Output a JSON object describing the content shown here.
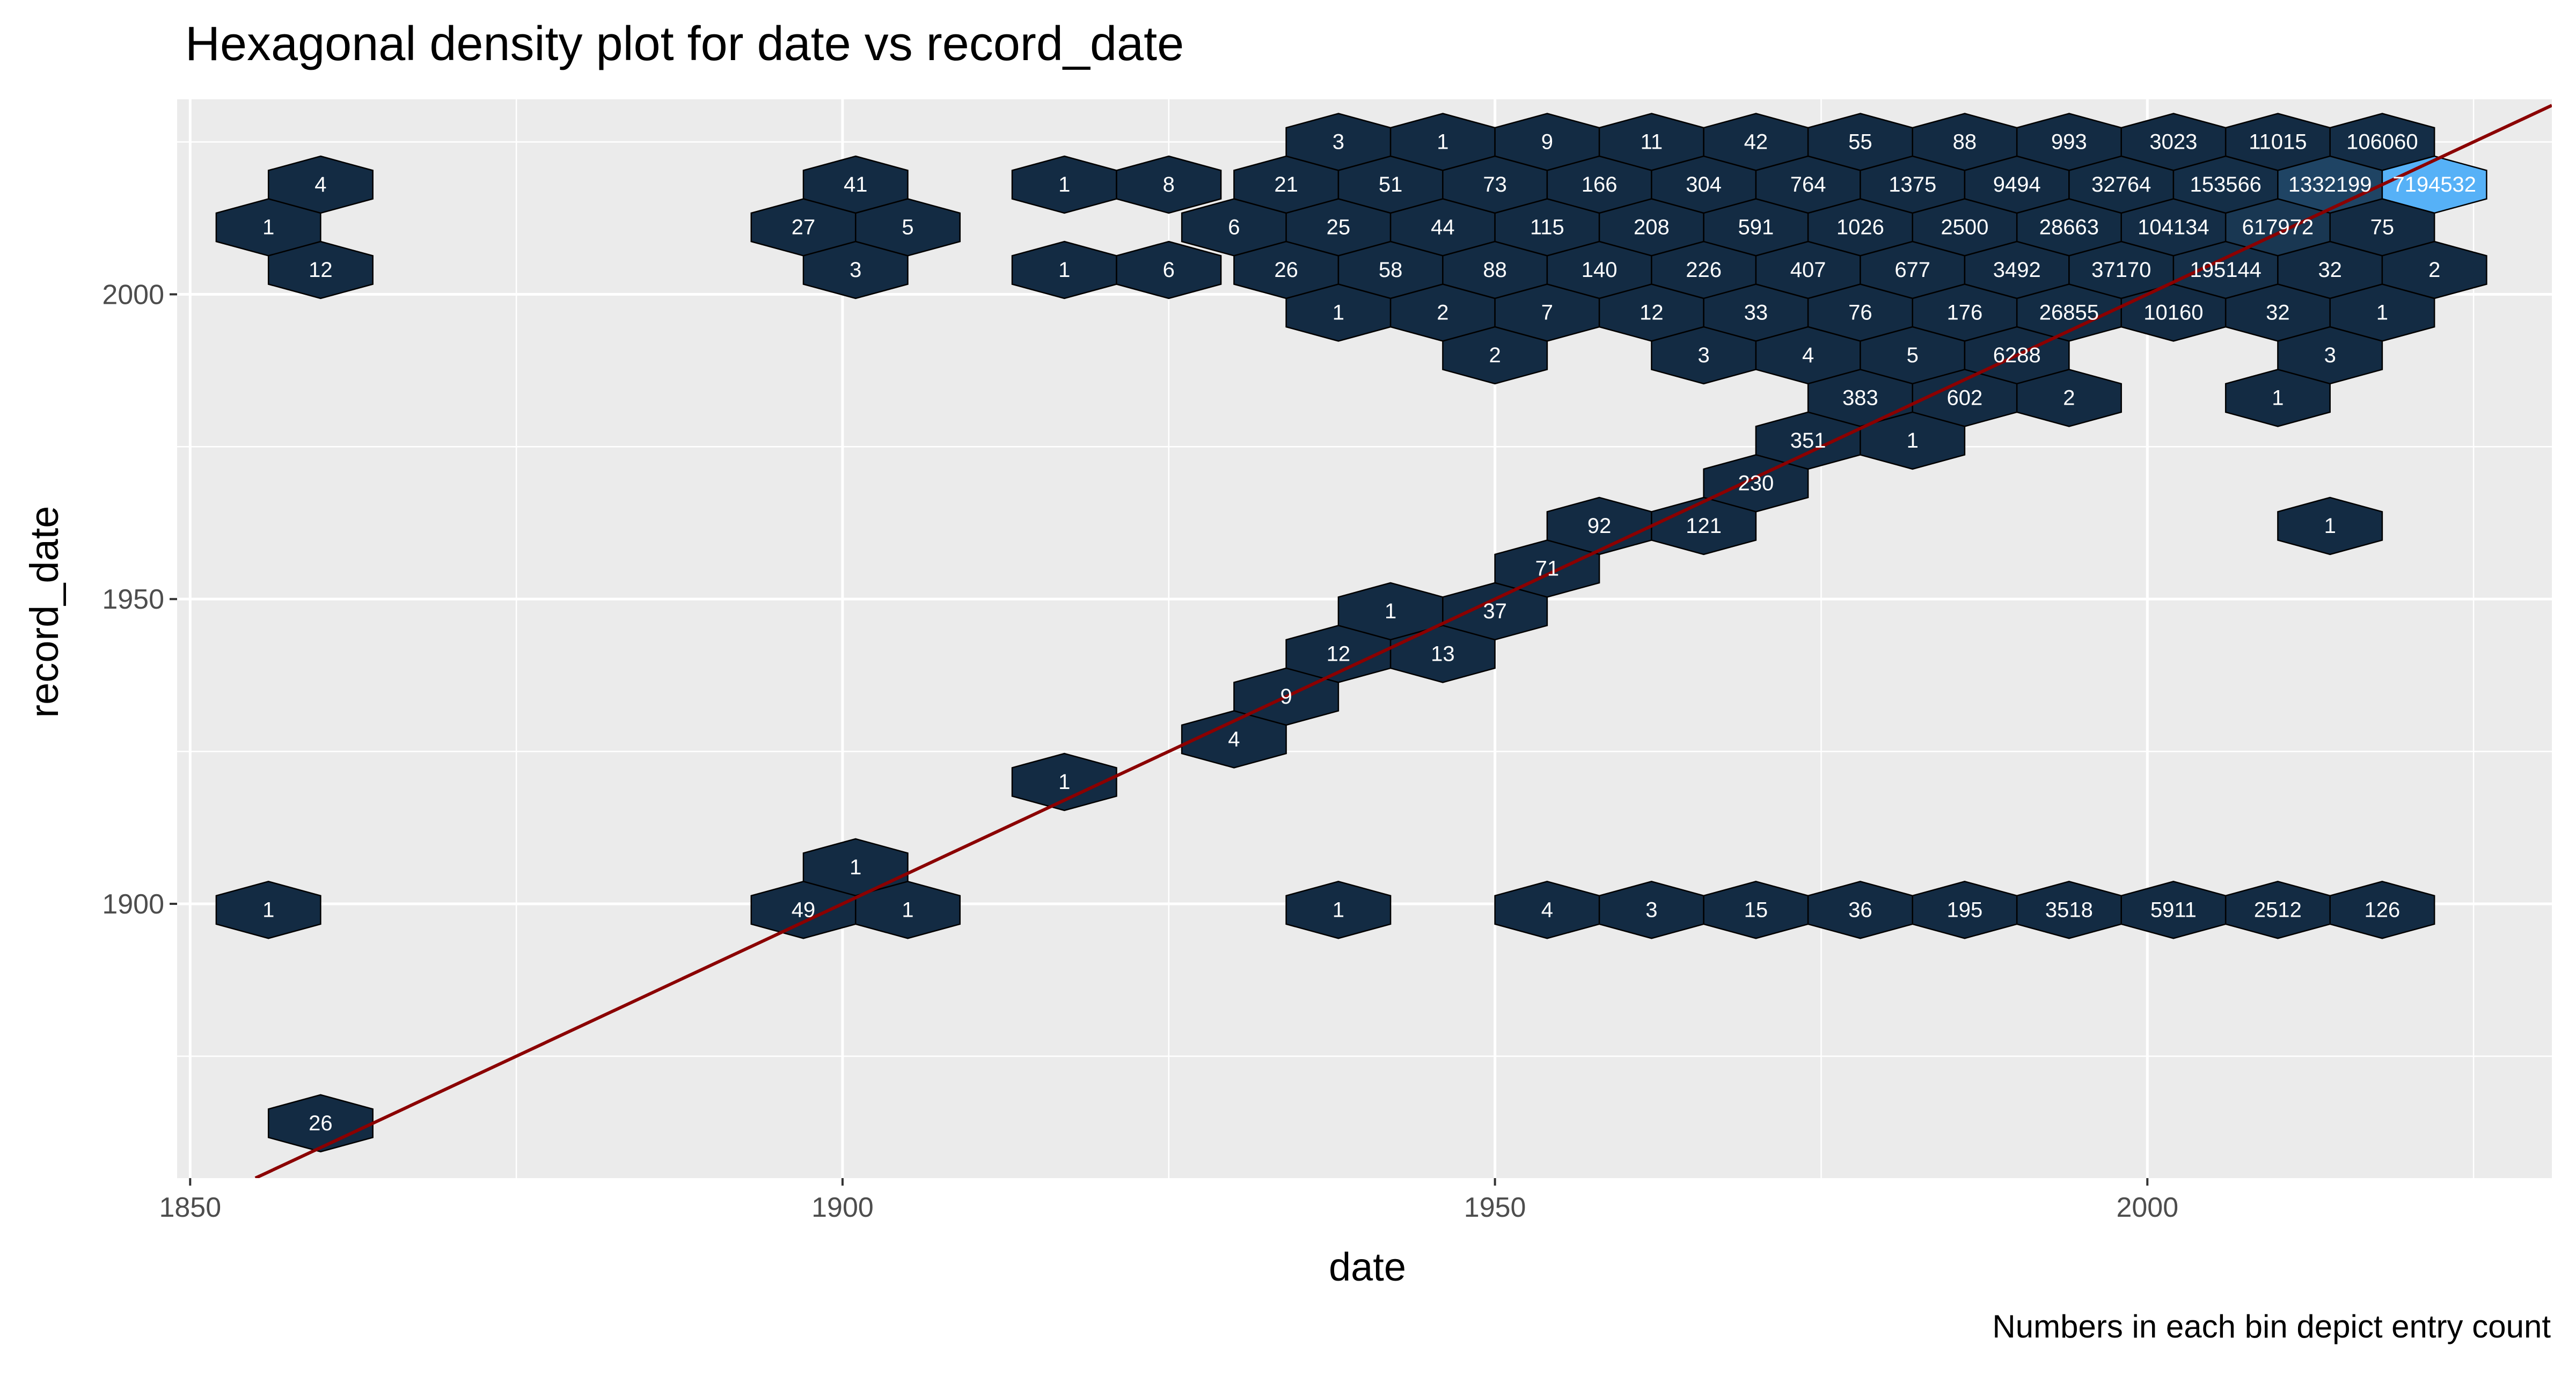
{
  "chart_data": {
    "type": "hexbin",
    "title": "Hexagonal density plot for date vs record_date",
    "xlabel": "date",
    "ylabel": "record_date",
    "caption": "Numbers in each bin depict entry count",
    "xlim": [
      1849,
      2031
    ],
    "ylim": [
      1855,
      2032
    ],
    "x_ticks": [
      1850,
      1900,
      1950,
      2000
    ],
    "y_ticks": [
      1900,
      1950,
      2000
    ],
    "grid": true,
    "colors": {
      "low": "#132b43",
      "high": "#56b1f7",
      "reference_line": "#8b0000"
    },
    "reference_line": {
      "slope": 1,
      "intercept": 0
    },
    "bins": [
      {
        "x": 1938,
        "y": 2025,
        "count": 3
      },
      {
        "x": 1946,
        "y": 2025,
        "count": 1
      },
      {
        "x": 1954,
        "y": 2025,
        "count": 9
      },
      {
        "x": 1962,
        "y": 2025,
        "count": 11
      },
      {
        "x": 1970,
        "y": 2025,
        "count": 42
      },
      {
        "x": 1978,
        "y": 2025,
        "count": 55
      },
      {
        "x": 1986,
        "y": 2025,
        "count": 88
      },
      {
        "x": 1994,
        "y": 2025,
        "count": 993
      },
      {
        "x": 2002,
        "y": 2025,
        "count": 3023
      },
      {
        "x": 2010,
        "y": 2025,
        "count": 11015
      },
      {
        "x": 2018,
        "y": 2025,
        "count": 106060
      },
      {
        "x": 1860,
        "y": 2018,
        "count": 4
      },
      {
        "x": 1901,
        "y": 2018,
        "count": 41
      },
      {
        "x": 1917,
        "y": 2018,
        "count": 1
      },
      {
        "x": 1925,
        "y": 2018,
        "count": 8
      },
      {
        "x": 1934,
        "y": 2018,
        "count": 21
      },
      {
        "x": 1942,
        "y": 2018,
        "count": 51
      },
      {
        "x": 1950,
        "y": 2018,
        "count": 73
      },
      {
        "x": 1958,
        "y": 2018,
        "count": 166
      },
      {
        "x": 1966,
        "y": 2018,
        "count": 304
      },
      {
        "x": 1974,
        "y": 2018,
        "count": 764
      },
      {
        "x": 1982,
        "y": 2018,
        "count": 1375
      },
      {
        "x": 1990,
        "y": 2018,
        "count": 9494
      },
      {
        "x": 1998,
        "y": 2018,
        "count": 32764
      },
      {
        "x": 2006,
        "y": 2018,
        "count": 153566
      },
      {
        "x": 2014,
        "y": 2018,
        "count": 1332199
      },
      {
        "x": 2022,
        "y": 2018,
        "count": 7194532
      },
      {
        "x": 1856,
        "y": 2011,
        "count": 1
      },
      {
        "x": 1897,
        "y": 2011,
        "count": 27
      },
      {
        "x": 1905,
        "y": 2011,
        "count": 5
      },
      {
        "x": 1930,
        "y": 2011,
        "count": 6
      },
      {
        "x": 1938,
        "y": 2011,
        "count": 25
      },
      {
        "x": 1946,
        "y": 2011,
        "count": 44
      },
      {
        "x": 1954,
        "y": 2011,
        "count": 115
      },
      {
        "x": 1962,
        "y": 2011,
        "count": 208
      },
      {
        "x": 1970,
        "y": 2011,
        "count": 591
      },
      {
        "x": 1978,
        "y": 2011,
        "count": 1026
      },
      {
        "x": 1986,
        "y": 2011,
        "count": 2500
      },
      {
        "x": 1994,
        "y": 2011,
        "count": 28663
      },
      {
        "x": 2002,
        "y": 2011,
        "count": 104134
      },
      {
        "x": 2010,
        "y": 2011,
        "count": 617972
      },
      {
        "x": 2018,
        "y": 2011,
        "count": 75
      },
      {
        "x": 1860,
        "y": 2004,
        "count": 12
      },
      {
        "x": 1901,
        "y": 2004,
        "count": 3
      },
      {
        "x": 1917,
        "y": 2004,
        "count": 1
      },
      {
        "x": 1925,
        "y": 2004,
        "count": 6
      },
      {
        "x": 1934,
        "y": 2004,
        "count": 26
      },
      {
        "x": 1942,
        "y": 2004,
        "count": 58
      },
      {
        "x": 1950,
        "y": 2004,
        "count": 88
      },
      {
        "x": 1958,
        "y": 2004,
        "count": 140
      },
      {
        "x": 1966,
        "y": 2004,
        "count": 226
      },
      {
        "x": 1974,
        "y": 2004,
        "count": 407
      },
      {
        "x": 1982,
        "y": 2004,
        "count": 677
      },
      {
        "x": 1990,
        "y": 2004,
        "count": 3492
      },
      {
        "x": 1998,
        "y": 2004,
        "count": 37170
      },
      {
        "x": 2006,
        "y": 2004,
        "count": 195144
      },
      {
        "x": 2014,
        "y": 2004,
        "count": 32
      },
      {
        "x": 2022,
        "y": 2004,
        "count": 2
      },
      {
        "x": 1938,
        "y": 1997,
        "count": 1
      },
      {
        "x": 1946,
        "y": 1997,
        "count": 2
      },
      {
        "x": 1954,
        "y": 1997,
        "count": 7
      },
      {
        "x": 1962,
        "y": 1997,
        "count": 12
      },
      {
        "x": 1970,
        "y": 1997,
        "count": 33
      },
      {
        "x": 1978,
        "y": 1997,
        "count": 76
      },
      {
        "x": 1986,
        "y": 1997,
        "count": 176
      },
      {
        "x": 1994,
        "y": 1997,
        "count": 26855
      },
      {
        "x": 2002,
        "y": 1997,
        "count": 10160
      },
      {
        "x": 2010,
        "y": 1997,
        "count": 32
      },
      {
        "x": 2018,
        "y": 1997,
        "count": 1
      },
      {
        "x": 1950,
        "y": 1990,
        "count": 2
      },
      {
        "x": 1966,
        "y": 1990,
        "count": 3
      },
      {
        "x": 1974,
        "y": 1990,
        "count": 4
      },
      {
        "x": 1982,
        "y": 1990,
        "count": 5
      },
      {
        "x": 1990,
        "y": 1990,
        "count": 6288
      },
      {
        "x": 2014,
        "y": 1990,
        "count": 3
      },
      {
        "x": 1978,
        "y": 1983,
        "count": 383
      },
      {
        "x": 1986,
        "y": 1983,
        "count": 602
      },
      {
        "x": 1994,
        "y": 1983,
        "count": 2
      },
      {
        "x": 2010,
        "y": 1983,
        "count": 1
      },
      {
        "x": 1974,
        "y": 1976,
        "count": 351
      },
      {
        "x": 1982,
        "y": 1976,
        "count": 1
      },
      {
        "x": 1970,
        "y": 1969,
        "count": 230
      },
      {
        "x": 1958,
        "y": 1962,
        "count": 92
      },
      {
        "x": 1966,
        "y": 1962,
        "count": 121
      },
      {
        "x": 2014,
        "y": 1962,
        "count": 1
      },
      {
        "x": 1954,
        "y": 1955,
        "count": 71
      },
      {
        "x": 1942,
        "y": 1948,
        "count": 1
      },
      {
        "x": 1950,
        "y": 1948,
        "count": 37
      },
      {
        "x": 1938,
        "y": 1941,
        "count": 12
      },
      {
        "x": 1946,
        "y": 1941,
        "count": 13
      },
      {
        "x": 1934,
        "y": 1934,
        "count": 9
      },
      {
        "x": 1930,
        "y": 1927,
        "count": 4
      },
      {
        "x": 1917,
        "y": 1920,
        "count": 1
      },
      {
        "x": 1901,
        "y": 1906,
        "count": 1
      },
      {
        "x": 1856,
        "y": 1899,
        "count": 1
      },
      {
        "x": 1897,
        "y": 1899,
        "count": 49
      },
      {
        "x": 1905,
        "y": 1899,
        "count": 1
      },
      {
        "x": 1938,
        "y": 1899,
        "count": 1
      },
      {
        "x": 1954,
        "y": 1899,
        "count": 4
      },
      {
        "x": 1962,
        "y": 1899,
        "count": 3
      },
      {
        "x": 1970,
        "y": 1899,
        "count": 15
      },
      {
        "x": 1978,
        "y": 1899,
        "count": 36
      },
      {
        "x": 1986,
        "y": 1899,
        "count": 195
      },
      {
        "x": 1994,
        "y": 1899,
        "count": 3518
      },
      {
        "x": 2002,
        "y": 1899,
        "count": 5911
      },
      {
        "x": 2010,
        "y": 1899,
        "count": 2512
      },
      {
        "x": 2018,
        "y": 1899,
        "count": 126
      },
      {
        "x": 1860,
        "y": 1864,
        "count": 26
      }
    ]
  }
}
